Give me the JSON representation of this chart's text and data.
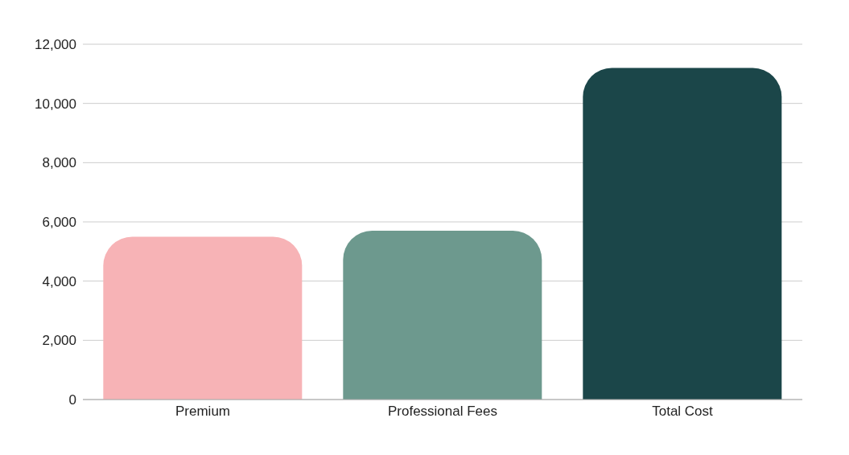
{
  "chart_data": {
    "type": "bar",
    "categories": [
      "Premium",
      "Professional Fees",
      "Total Cost"
    ],
    "values": [
      5500,
      5700,
      11200
    ],
    "colors": [
      "#f7b3b6",
      "#6d998e",
      "#1b4649"
    ],
    "ylim": [
      0,
      12000
    ],
    "yticks": [
      {
        "value": 0,
        "label": "0"
      },
      {
        "value": 2000,
        "label": "2,000"
      },
      {
        "value": 4000,
        "label": "4,000"
      },
      {
        "value": 6000,
        "label": "6,000"
      },
      {
        "value": 8000,
        "label": "8,000"
      },
      {
        "value": 10000,
        "label": "10,000"
      },
      {
        "value": 12000,
        "label": "12,000"
      }
    ],
    "grid": "y",
    "legend": false
  }
}
